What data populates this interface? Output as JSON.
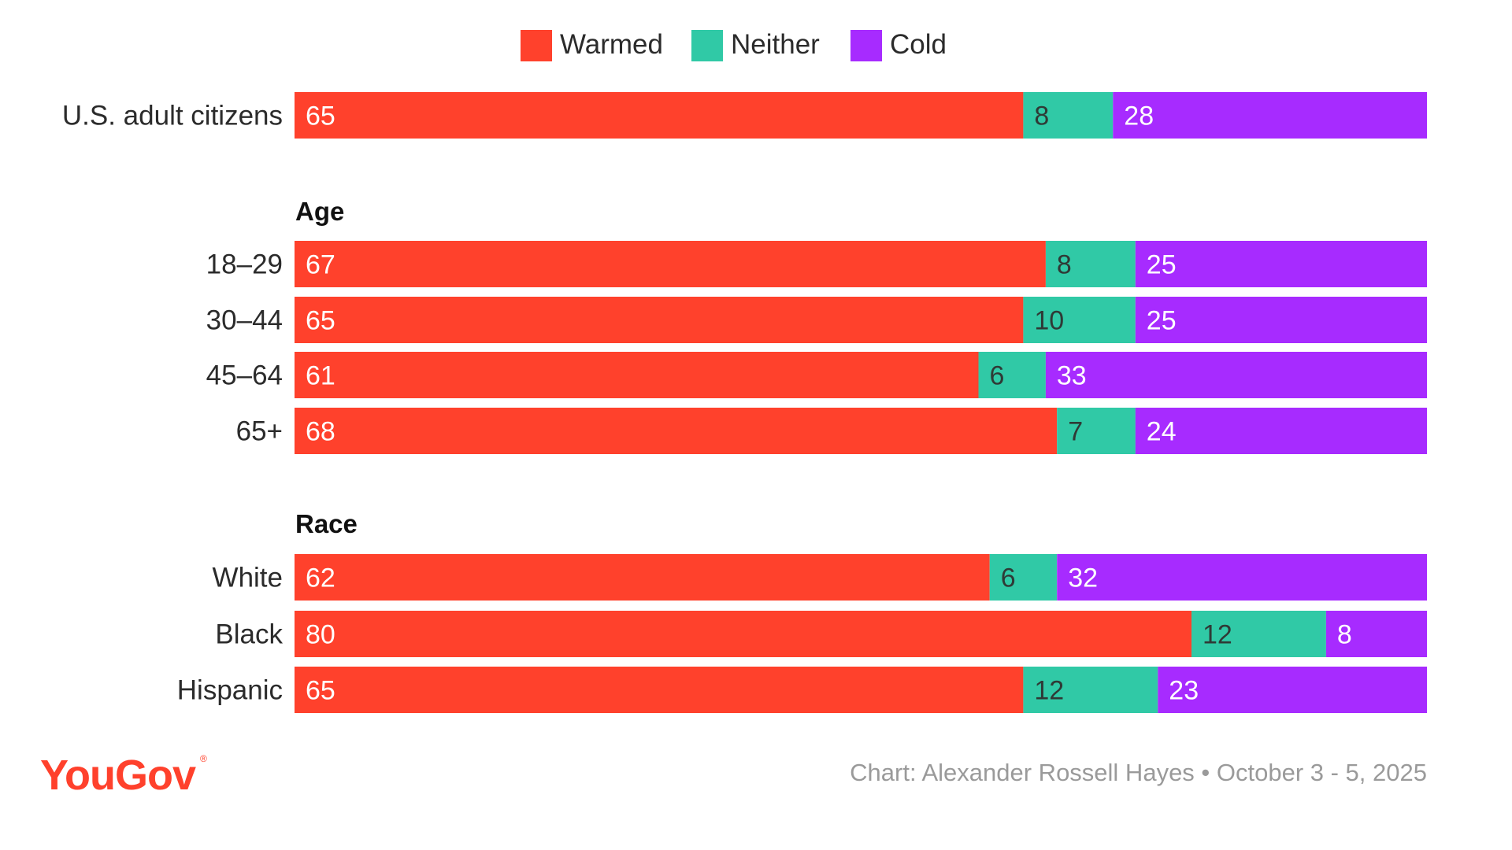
{
  "colors": {
    "warmed": "#ff412c",
    "neither": "#30c9a6",
    "cold": "#a72bff"
  },
  "chart_data": {
    "type": "bar",
    "orientation": "horizontal",
    "stacked": true,
    "unit": "%",
    "xlim": [
      0,
      101
    ],
    "legend_position": "top-center",
    "legend": [
      "Warmed",
      "Neither",
      "Cold"
    ],
    "series": [
      {
        "name": "Warmed",
        "color": "#ff412c"
      },
      {
        "name": "Neither",
        "color": "#30c9a6"
      },
      {
        "name": "Cold",
        "color": "#a72bff"
      }
    ],
    "rows": [
      {
        "label": "U.S. adult citizens",
        "group": "",
        "values": [
          65,
          8,
          28
        ]
      },
      {
        "label": "18–29",
        "group": "Age",
        "values": [
          67,
          8,
          25
        ]
      },
      {
        "label": "30–44",
        "group": "Age",
        "values": [
          65,
          10,
          25
        ]
      },
      {
        "label": "45–64",
        "group": "Age",
        "values": [
          61,
          6,
          33
        ]
      },
      {
        "label": "65+",
        "group": "Age",
        "values": [
          68,
          7,
          24
        ]
      },
      {
        "label": "White",
        "group": "Race",
        "values": [
          62,
          6,
          32
        ]
      },
      {
        "label": "Black",
        "group": "Race",
        "values": [
          80,
          12,
          8
        ]
      },
      {
        "label": "Hispanic",
        "group": "Race",
        "values": [
          65,
          12,
          23
        ]
      }
    ],
    "group_headers": [
      "Age",
      "Race"
    ]
  },
  "footer": {
    "credit": "Chart: Alexander Rossell Hayes • October 3 - 5, 2025"
  },
  "logo": {
    "text": "YouGov",
    "registered": "®"
  }
}
